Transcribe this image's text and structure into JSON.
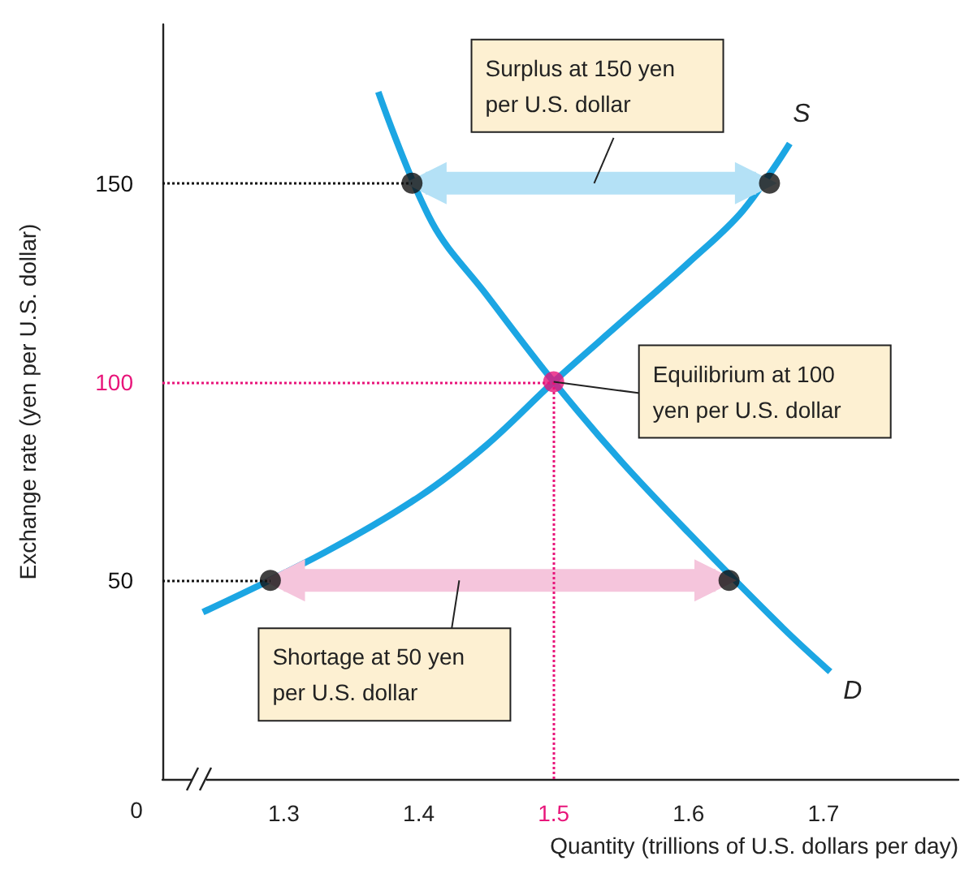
{
  "chart_data": {
    "type": "line",
    "xlabel": "Quantity (trillions of U.S. dollars per day)",
    "ylabel": "Exchange rate (yen per U.S. dollar)",
    "xlim": [
      1.21,
      1.8
    ],
    "xticks": [
      1.3,
      1.4,
      1.5,
      1.6,
      1.7
    ],
    "ylim": [
      0,
      190
    ],
    "yticks": [
      50,
      100,
      150
    ],
    "grid": false,
    "legend": false,
    "series": [
      {
        "name": "S",
        "color": "#1ca6e3",
        "x": [
          1.24,
          1.33,
          1.4,
          1.45,
          1.5,
          1.55,
          1.6,
          1.64,
          1.675
        ],
        "values": [
          42,
          57,
          71,
          84,
          100,
          115,
          130,
          143,
          160
        ],
        "marker": "none"
      },
      {
        "name": "D",
        "color": "#1ca6e3",
        "x": [
          1.37,
          1.41,
          1.45,
          1.5,
          1.55,
          1.6,
          1.67,
          1.705
        ],
        "values": [
          173,
          140,
          122,
          100,
          80,
          62,
          38,
          27
        ],
        "marker": "none"
      },
      {
        "type": "line",
        "color": "#b4e1f6",
        "x": [
          1.405,
          1.65
        ],
        "values": [
          150,
          150
        ],
        "marker": "triangle"
      },
      {
        "type": "line",
        "color": "#f5c5dc",
        "x": [
          1.3,
          1.62
        ],
        "values": [
          50,
          50
        ],
        "marker": "triangle"
      },
      {
        "type": "scatter",
        "x": [
          1.395,
          1.5,
          1.66,
          1.29,
          1.63
        ],
        "values": [
          150,
          100,
          150,
          50,
          50
        ],
        "colors": [
          "#111111",
          "#e8157a",
          "#111111",
          "#111111",
          "#111111"
        ],
        "marker": "circle"
      }
    ],
    "ref_lines": [
      {
        "axis": "y",
        "value": 150,
        "color": "#111111",
        "line_style": "dotted"
      },
      {
        "axis": "y",
        "value": 100,
        "color": "#e8157a",
        "line_style": "dotted"
      },
      {
        "axis": "y",
        "value": 50,
        "color": "#111111",
        "line_style": "dotted"
      },
      {
        "axis": "x",
        "value": 1.5,
        "color": "#e8157a",
        "line_style": "dotted"
      }
    ],
    "annotations": [
      {
        "text": "Surplus at 150 yen per U.S. dollar",
        "x": 1.53,
        "y": 150
      },
      {
        "text": "Equilibrium at 100 yen per U.S. dollar",
        "x": 1.5,
        "y": 100
      },
      {
        "text": "Shortage at 50 yen per U.S. dollar",
        "x": 1.43,
        "y": 50
      },
      "0"
    ]
  }
}
